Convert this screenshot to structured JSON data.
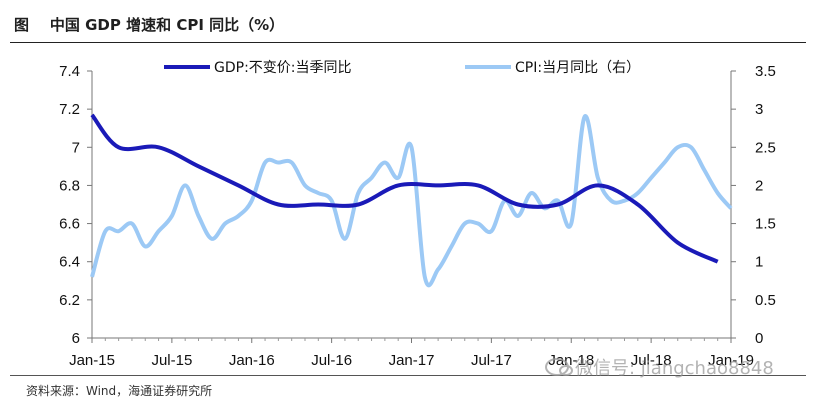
{
  "title": "图    中国 GDP 增速和 CPI 同比（%）",
  "source": "资料来源：Wind，海通证券研究所",
  "watermark": "微信号: jiangchao8848",
  "chart_data": {
    "type": "line",
    "x_tick_labels": [
      "Jan-15",
      "Jul-15",
      "Jan-16",
      "Jul-16",
      "Jan-17",
      "Jul-17",
      "Jan-18",
      "Jul-18",
      "Jan-19"
    ],
    "x": [
      "2015-01",
      "2015-02",
      "2015-03",
      "2015-04",
      "2015-05",
      "2015-06",
      "2015-07",
      "2015-08",
      "2015-09",
      "2015-10",
      "2015-11",
      "2015-12",
      "2016-01",
      "2016-02",
      "2016-03",
      "2016-04",
      "2016-05",
      "2016-06",
      "2016-07",
      "2016-08",
      "2016-09",
      "2016-10",
      "2016-11",
      "2016-12",
      "2017-01",
      "2017-02",
      "2017-03",
      "2017-04",
      "2017-05",
      "2017-06",
      "2017-07",
      "2017-08",
      "2017-09",
      "2017-10",
      "2017-11",
      "2017-12",
      "2018-01",
      "2018-02",
      "2018-03",
      "2018-04",
      "2018-05",
      "2018-06",
      "2018-07",
      "2018-08",
      "2018-09",
      "2018-10",
      "2018-11",
      "2018-12",
      "2019-01"
    ],
    "left_axis": {
      "ylim": [
        6,
        7.4
      ],
      "ticks": [
        "7.4",
        "7.2",
        "7",
        "6.8",
        "6.6",
        "6.4",
        "6.2",
        "6"
      ]
    },
    "right_axis": {
      "ylim": [
        0,
        3.5
      ],
      "ticks": [
        "3.5",
        "3",
        "2.5",
        "2",
        "1.5",
        "1",
        "0.5",
        "0"
      ]
    },
    "series": [
      {
        "name": "GDP:不变价:当季同比",
        "axis": "left",
        "color": "#1a1ab8",
        "points": [
          [
            "2015-03",
            7.0
          ],
          [
            "2015-06",
            7.0
          ],
          [
            "2015-09",
            6.9
          ],
          [
            "2015-12",
            6.8
          ],
          [
            "2016-03",
            6.7
          ],
          [
            "2016-06",
            6.7
          ],
          [
            "2016-09",
            6.7
          ],
          [
            "2016-12",
            6.8
          ],
          [
            "2017-03",
            6.8
          ],
          [
            "2017-06",
            6.8
          ],
          [
            "2017-09",
            6.7
          ],
          [
            "2017-12",
            6.7
          ],
          [
            "2018-03",
            6.8
          ],
          [
            "2018-06",
            6.7
          ],
          [
            "2018-09",
            6.5
          ],
          [
            "2018-12",
            6.4
          ]
        ],
        "start_value": 7.17
      },
      {
        "name": "CPI:当月同比（右）",
        "axis": "right",
        "color": "#9cc9f5",
        "values": [
          0.8,
          1.4,
          1.4,
          1.5,
          1.2,
          1.4,
          1.6,
          2.0,
          1.6,
          1.3,
          1.5,
          1.6,
          1.8,
          2.3,
          2.3,
          2.3,
          2.0,
          1.9,
          1.8,
          1.3,
          1.9,
          2.1,
          2.3,
          2.1,
          2.5,
          0.8,
          0.9,
          1.2,
          1.5,
          1.5,
          1.4,
          1.8,
          1.6,
          1.9,
          1.7,
          1.8,
          1.5,
          2.9,
          2.1,
          1.8,
          1.8,
          1.9,
          2.1,
          2.3,
          2.5,
          2.5,
          2.2,
          1.9,
          1.7
        ]
      }
    ],
    "legend": "top",
    "grid": false
  }
}
